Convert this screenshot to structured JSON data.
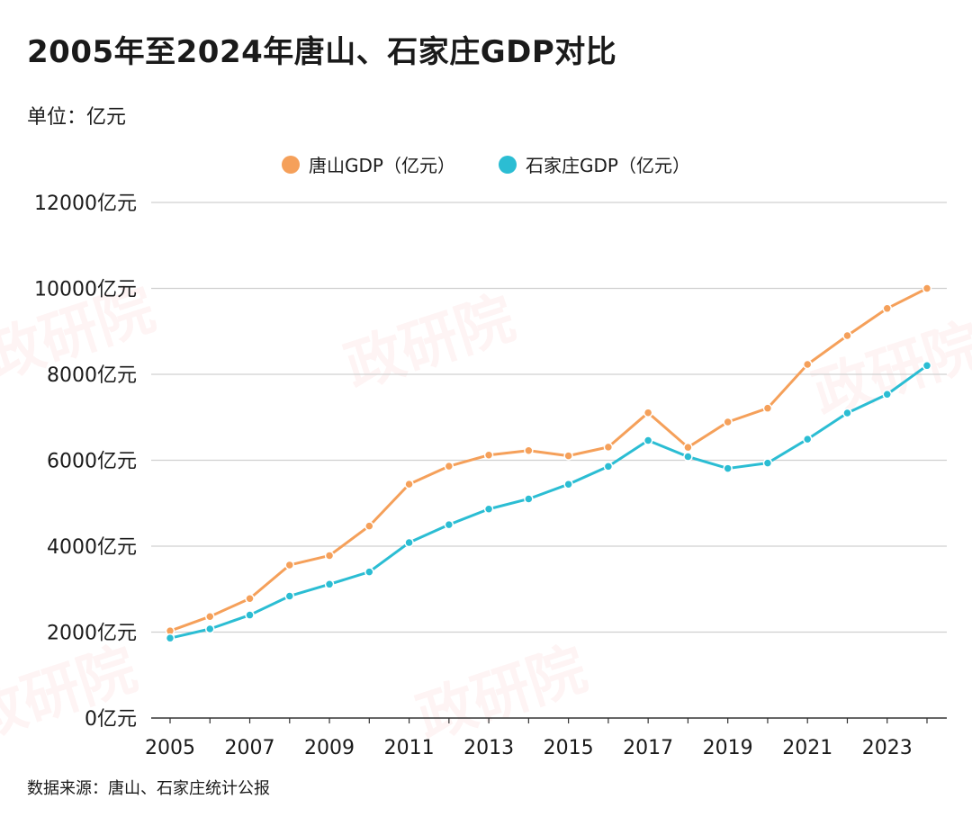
{
  "title": "2005年至2024年唐山、石家庄GDP对比",
  "unit_label": "单位：亿元",
  "source": "数据来源：唐山、石家庄统计公报",
  "watermark": "政研院",
  "colors": {
    "tangshan": "#f5a05a",
    "shijiazhuang": "#2bbdd3",
    "grid": "#d0d0d0",
    "axis": "#333333"
  },
  "chart_data": {
    "type": "line",
    "title": "2005年至2024年唐山、石家庄GDP对比",
    "ylim": [
      0,
      12000
    ],
    "yticks": [
      {
        "value": 0,
        "label": "0亿元"
      },
      {
        "value": 2000,
        "label": "2000亿元"
      },
      {
        "value": 4000,
        "label": "4000亿元"
      },
      {
        "value": 6000,
        "label": "6000亿元"
      },
      {
        "value": 8000,
        "label": "8000亿元"
      },
      {
        "value": 10000,
        "label": "10000亿元"
      },
      {
        "value": 12000,
        "label": "12000亿元"
      }
    ],
    "xticks": [
      "2005",
      "2007",
      "2009",
      "2011",
      "2013",
      "2015",
      "2017",
      "2019",
      "2021",
      "2023"
    ],
    "x": [
      2005,
      2006,
      2007,
      2008,
      2009,
      2010,
      2011,
      2012,
      2013,
      2014,
      2015,
      2016,
      2017,
      2018,
      2019,
      2020,
      2021,
      2022,
      2023,
      2024
    ],
    "grid": true,
    "legend_position": "top-center",
    "series": [
      {
        "name": "唐山GDP（亿元）",
        "color": "#f5a05a",
        "values": [
          2028,
          2362,
          2780,
          3561,
          3781,
          4469,
          5442,
          5861,
          6121,
          6225,
          6103,
          6306,
          7106,
          6300,
          6890,
          7211,
          8230,
          8901,
          9533,
          10000
        ]
      },
      {
        "name": "石家庄GDP（亿元）",
        "color": "#2bbdd3",
        "values": [
          1860,
          2073,
          2397,
          2838,
          3114,
          3401,
          4083,
          4500,
          4864,
          5100,
          5441,
          5857,
          6460,
          6083,
          5810,
          5935,
          6490,
          7100,
          7534,
          8203
        ]
      }
    ]
  }
}
